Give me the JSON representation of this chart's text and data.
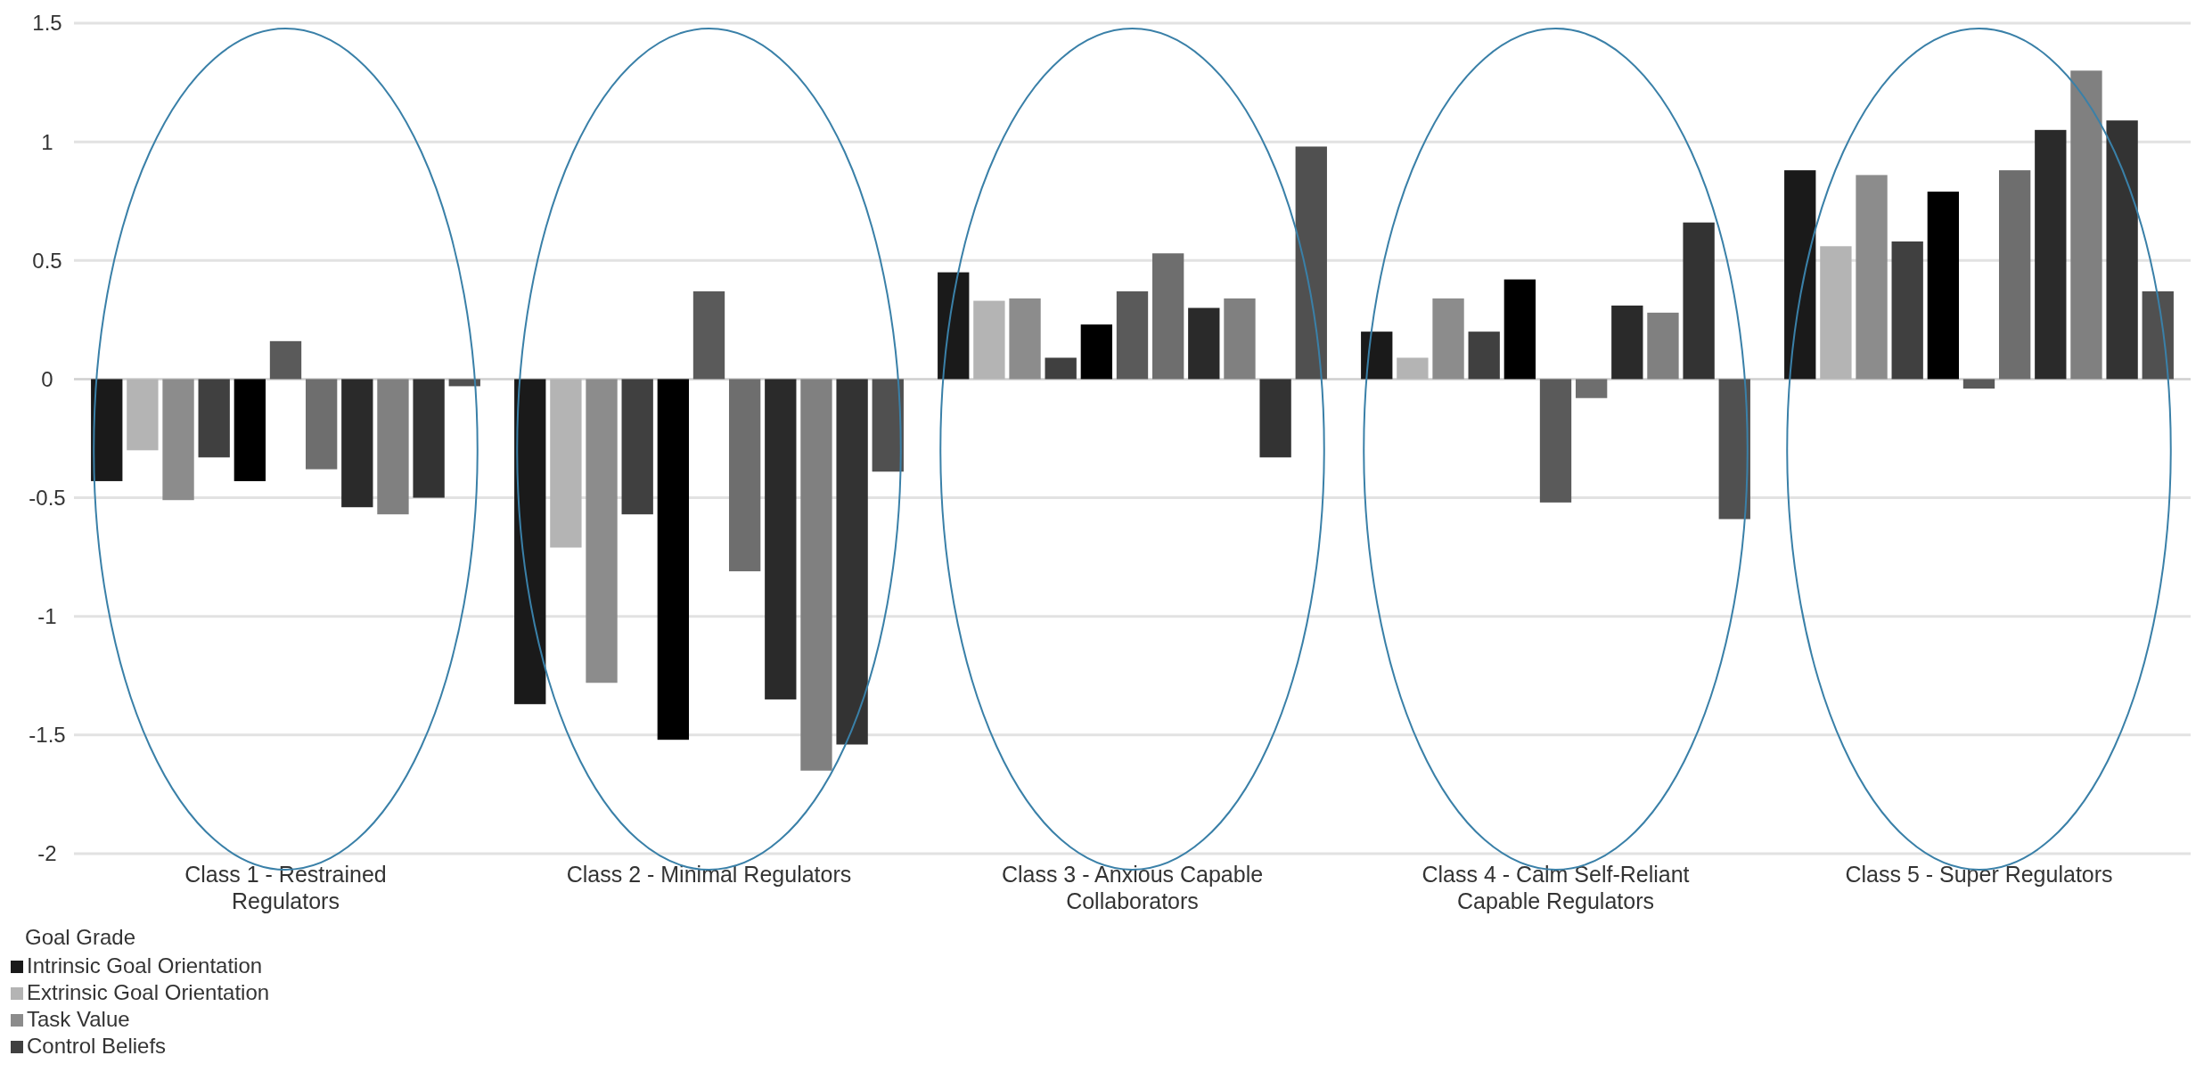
{
  "chart_data": {
    "type": "bar",
    "categories": [
      "Class 1 - Restrained Regulators",
      "Class 2 - Minimal Regulators",
      "Class 3 - Anxious Capable Collaborators",
      "Class 4 - Calm Self-Reliant Capable Regulators",
      "Class 5 - Super Regulators"
    ],
    "series": [
      {
        "name": "Intrinsic Goal Orientation",
        "color": "#1a1a1a",
        "values": [
          -0.43,
          -1.37,
          0.45,
          0.2,
          0.88
        ]
      },
      {
        "name": "Extrinsic Goal Orientation",
        "color": "#b4b4b4",
        "values": [
          -0.3,
          -0.71,
          0.33,
          0.09,
          0.56
        ]
      },
      {
        "name": "Task Value",
        "color": "#8c8c8c",
        "values": [
          -0.51,
          -1.28,
          0.34,
          0.34,
          0.86
        ]
      },
      {
        "name": "Control Beliefs",
        "color": "#404040",
        "values": [
          -0.33,
          -0.57,
          0.09,
          0.2,
          0.58
        ]
      },
      {
        "color": "#000000",
        "values": [
          -0.43,
          -1.52,
          0.23,
          0.42,
          0.79
        ]
      },
      {
        "color": "#5a5a5a",
        "values": [
          0.16,
          0.37,
          0.37,
          -0.52,
          -0.04
        ]
      },
      {
        "color": "#6e6e6e",
        "values": [
          -0.38,
          -0.81,
          0.53,
          -0.08,
          0.88
        ]
      },
      {
        "color": "#2a2a2a",
        "values": [
          -0.54,
          -1.35,
          0.3,
          0.31,
          1.05
        ]
      },
      {
        "color": "#808080",
        "values": [
          -0.57,
          -1.65,
          0.34,
          0.28,
          1.3
        ]
      },
      {
        "color": "#333333",
        "values": [
          -0.5,
          -1.54,
          -0.33,
          0.66,
          1.09
        ]
      },
      {
        "color": "#505050",
        "values": [
          -0.03,
          -0.39,
          0.98,
          -0.59,
          0.37
        ]
      }
    ],
    "legend_title": "Goal Grade",
    "ylim": [
      -2,
      1.5
    ],
    "yticks": [
      -2,
      -1.5,
      -1,
      -0.5,
      0,
      0.5,
      1,
      1.5
    ],
    "grid": "y",
    "legend": "bottom left"
  }
}
